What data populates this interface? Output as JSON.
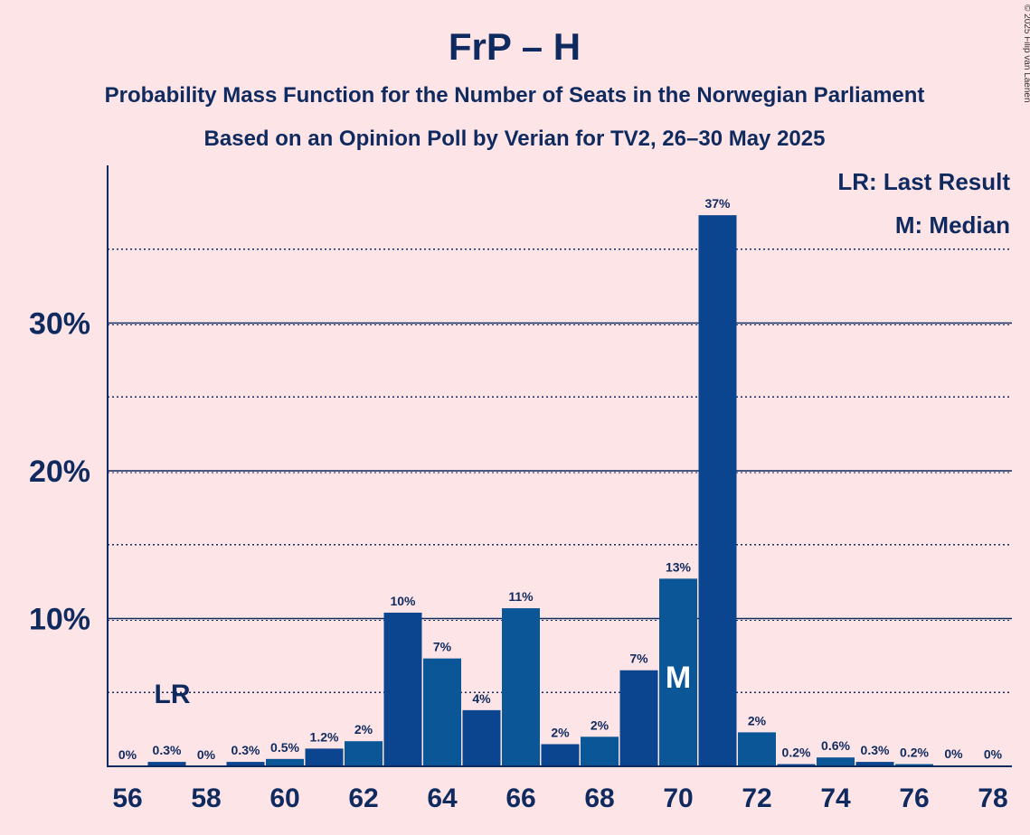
{
  "copyright": "© 2025 Filip van Laenen",
  "chart_data": {
    "type": "bar",
    "title": "FrP – H",
    "subtitle_1": "Probability Mass Function for the Number of Seats in the Norwegian Parliament",
    "subtitle_2": "Based on an Opinion Poll by Verian for TV2, 26–30 May 2025",
    "legend": [
      "LR: Last Result",
      "M: Median"
    ],
    "ylim": [
      0,
      40
    ],
    "yticks": [
      {
        "value": 10,
        "label": "10%"
      },
      {
        "value": 20,
        "label": "20%"
      },
      {
        "value": 30,
        "label": "30%"
      }
    ],
    "minor_grid": [
      5,
      15,
      25,
      35
    ],
    "xticks": [
      "56",
      "58",
      "60",
      "62",
      "64",
      "66",
      "68",
      "70",
      "72",
      "74",
      "76",
      "78"
    ],
    "x": [
      56,
      57,
      58,
      59,
      60,
      61,
      62,
      63,
      64,
      65,
      66,
      67,
      68,
      69,
      70,
      71,
      72,
      73,
      74,
      75,
      76,
      77,
      78
    ],
    "values": [
      0,
      0.3,
      0,
      0.3,
      0.5,
      1.2,
      1.7,
      10.4,
      7.3,
      3.8,
      10.7,
      1.5,
      2.0,
      6.5,
      12.7,
      37.3,
      2.3,
      0.15,
      0.6,
      0.3,
      0.15,
      0.05,
      0.03
    ],
    "labels": [
      "0%",
      "0.3%",
      "0%",
      "0.3%",
      "0.5%",
      "1.2%",
      "2%",
      "10%",
      "7%",
      "4%",
      "11%",
      "2%",
      "2%",
      "7%",
      "13%",
      "37%",
      "2%",
      "0.2%",
      "0.6%",
      "0.3%",
      "0.2%",
      "0%",
      "0%"
    ],
    "last_result": {
      "seat": 57,
      "label": "LR"
    },
    "median": {
      "seat": 70,
      "label": "M"
    },
    "colors": {
      "bar_dark": "#0b4590",
      "bar_light": "#0b5696",
      "text": "#0f2a5f",
      "background": "#fde4e6"
    }
  }
}
